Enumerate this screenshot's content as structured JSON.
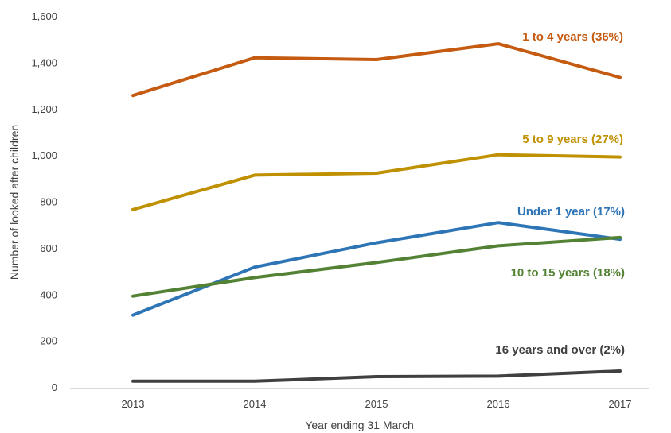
{
  "chart_data": {
    "type": "line",
    "title": "",
    "xlabel": "Year ending 31 March",
    "ylabel": "Number of looked after children",
    "categories": [
      "2013",
      "2014",
      "2015",
      "2016",
      "2017"
    ],
    "ylim": [
      0,
      1600
    ],
    "yticks": [
      0,
      200,
      400,
      600,
      800,
      1000,
      1200,
      1400,
      1600
    ],
    "ytick_labels": [
      "0",
      "200",
      "400",
      "600",
      "800",
      "1,000",
      "1,200",
      "1,400",
      "1,600"
    ],
    "grid": false,
    "legend": "none",
    "series": [
      {
        "name": "1 to 4 years (36%)",
        "color": "#C55A11",
        "values": [
          1260,
          1423,
          1415,
          1483,
          1338
        ]
      },
      {
        "name": "5 to 9 years (27%)",
        "color": "#BF9000",
        "values": [
          768,
          917,
          925,
          1005,
          995
        ]
      },
      {
        "name": "Under 1 year (17%)",
        "color": "#2E75B6",
        "values": [
          313,
          520,
          625,
          712,
          640
        ]
      },
      {
        "name": "10 to 15 years (18%)",
        "color": "#548235",
        "values": [
          395,
          475,
          540,
          612,
          648
        ]
      },
      {
        "name": "16 years and over (2%)",
        "color": "#404040",
        "values": [
          28,
          28,
          48,
          50,
          72
        ]
      }
    ]
  }
}
